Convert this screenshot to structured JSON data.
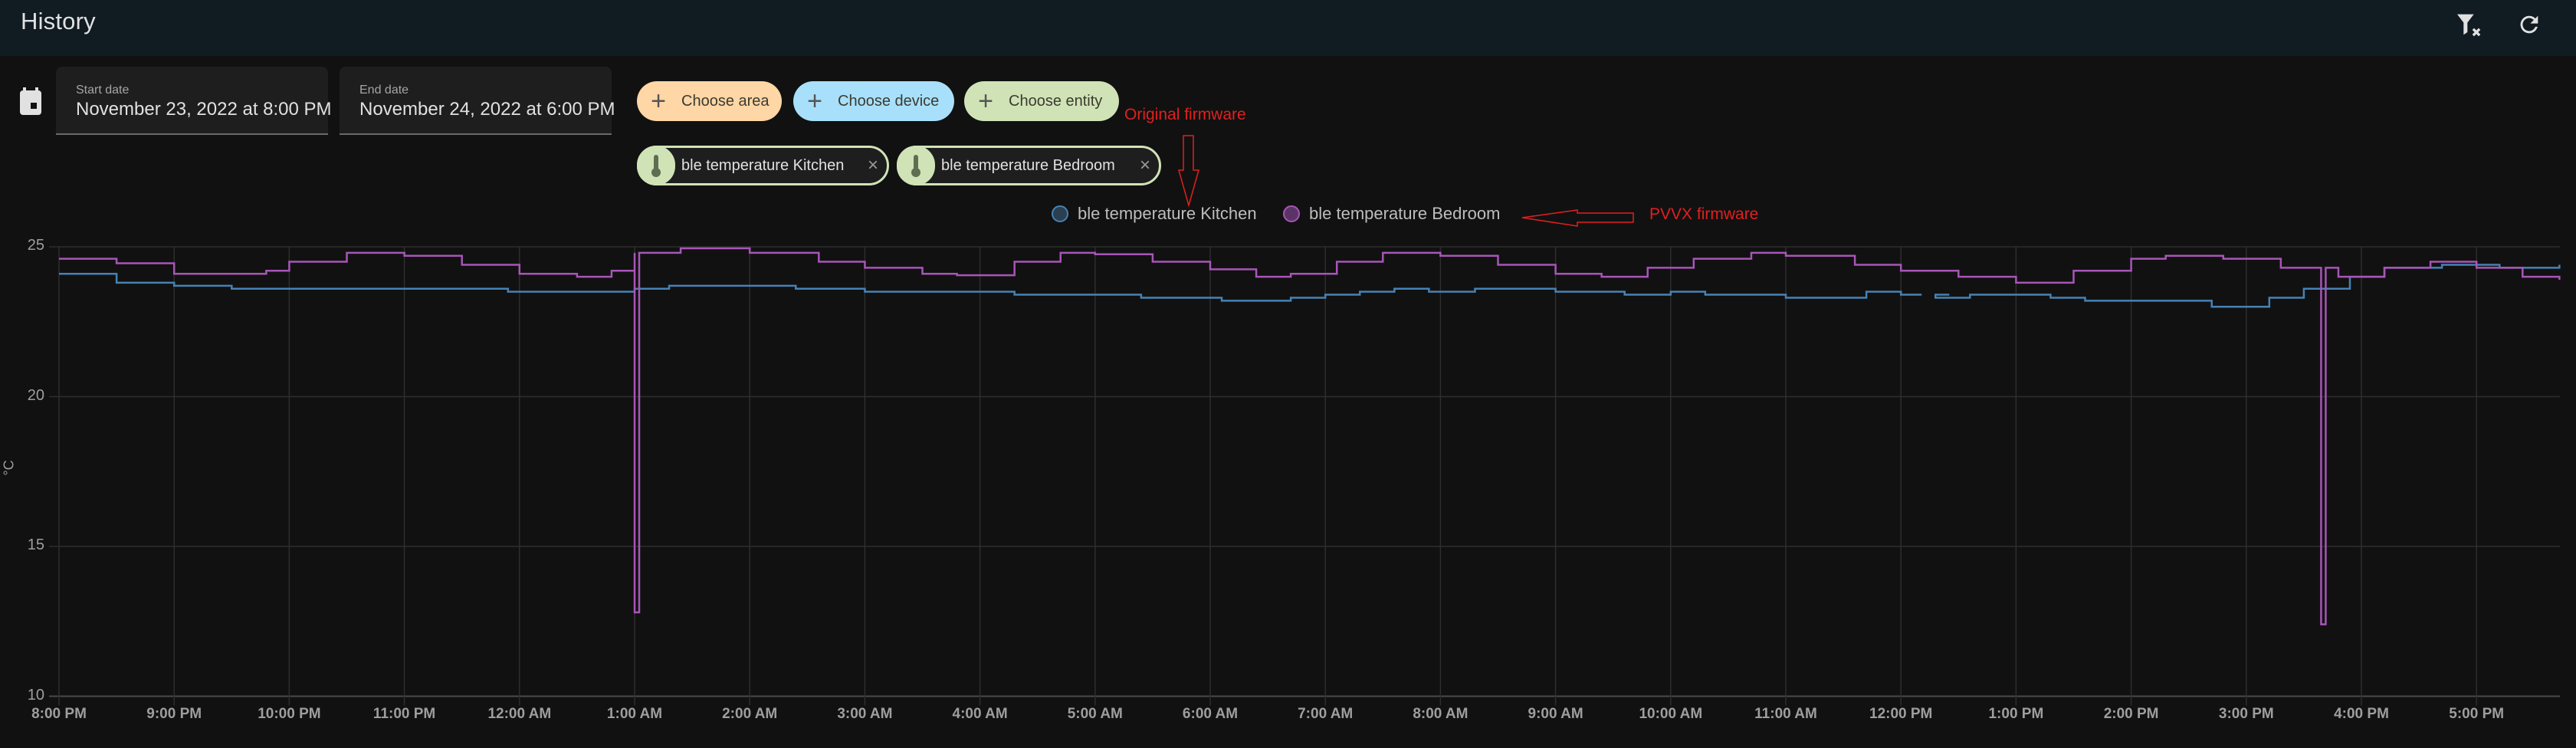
{
  "header": {
    "title": "History",
    "icons": [
      "filter-remove-icon",
      "refresh-icon"
    ]
  },
  "date_range": {
    "start": {
      "label": "Start date",
      "value": "November 23, 2022 at 8:00 PM"
    },
    "end": {
      "label": "End date",
      "value": "November 24, 2022 at 6:00 PM"
    }
  },
  "targets": {
    "add_buttons": [
      {
        "label": "Choose area",
        "color": "#ffd6a5",
        "icon": "plus-icon"
      },
      {
        "label": "Choose device",
        "color": "#a8e0fb",
        "icon": "plus-icon"
      },
      {
        "label": "Choose entity",
        "color": "#d0e3b6",
        "icon": "plus-icon"
      }
    ],
    "selected": [
      {
        "label": "ble temperature Kitchen",
        "icon": "thermometer-icon"
      },
      {
        "label": "ble temperature Bedroom",
        "icon": "thermometer-icon"
      }
    ]
  },
  "legend": [
    {
      "label": "ble temperature Kitchen",
      "color": "#4682b4",
      "fill": "#2a3f52"
    },
    {
      "label": "ble temperature Bedroom",
      "color": "#a855b8",
      "fill": "#5a3466"
    }
  ],
  "annotations": {
    "original": "Original firmware",
    "pvvx": "PVVX firmware"
  },
  "chart_data": {
    "type": "line",
    "title": "",
    "xlabel": "",
    "ylabel": "°C",
    "ylim": [
      10,
      25
    ],
    "yticks": [
      10,
      15,
      20,
      25
    ],
    "grid": true,
    "legend_position": "top",
    "x_ticks": [
      "8:00 PM",
      "9:00 PM",
      "10:00 PM",
      "11:00 PM",
      "12:00 AM",
      "1:00 AM",
      "2:00 AM",
      "3:00 AM",
      "4:00 AM",
      "5:00 AM",
      "6:00 AM",
      "7:00 AM",
      "8:00 AM",
      "9:00 AM",
      "10:00 AM",
      "11:00 AM",
      "12:00 PM",
      "1:00 PM",
      "2:00 PM",
      "3:00 PM",
      "4:00 PM",
      "5:00 PM"
    ],
    "x_range_hours": [
      0,
      21.72
    ],
    "series": [
      {
        "name": "ble temperature Kitchen",
        "color": "#4682b4",
        "step": true,
        "points": [
          [
            0,
            24.1
          ],
          [
            0.5,
            23.8
          ],
          [
            1,
            23.7
          ],
          [
            1.5,
            23.6
          ],
          [
            2.5,
            23.6
          ],
          [
            3,
            23.6
          ],
          [
            3.9,
            23.5
          ],
          [
            4.5,
            23.5
          ],
          [
            5,
            23.6
          ],
          [
            5.3,
            23.7
          ],
          [
            6,
            23.7
          ],
          [
            6.4,
            23.6
          ],
          [
            7,
            23.5
          ],
          [
            8,
            23.5
          ],
          [
            8.3,
            23.4
          ],
          [
            9,
            23.4
          ],
          [
            9.4,
            23.3
          ],
          [
            10,
            23.3
          ],
          [
            10.1,
            23.2
          ],
          [
            10.7,
            23.3
          ],
          [
            11,
            23.4
          ],
          [
            11.3,
            23.5
          ],
          [
            11.6,
            23.6
          ],
          [
            11.9,
            23.5
          ],
          [
            12.3,
            23.6
          ],
          [
            13,
            23.5
          ],
          [
            13.6,
            23.4
          ],
          [
            14,
            23.5
          ],
          [
            14.3,
            23.4
          ],
          [
            14.6,
            23.4
          ],
          [
            15,
            23.3
          ],
          [
            15.4,
            23.3
          ],
          [
            15.7,
            23.5
          ],
          [
            16,
            23.4
          ],
          [
            16.3,
            23.3
          ],
          [
            16.6,
            23.4
          ],
          [
            16.9,
            23.4
          ],
          [
            17.3,
            23.3
          ],
          [
            17.6,
            23.2
          ],
          [
            18.7,
            23.0
          ],
          [
            19.2,
            23.3
          ],
          [
            19.5,
            23.6
          ],
          [
            19.9,
            24.0
          ],
          [
            20.2,
            24.3
          ],
          [
            20.7,
            24.4
          ],
          [
            21.2,
            24.3
          ],
          [
            21.72,
            24.4
          ]
        ],
        "gaps": [
          [
            16.18,
            16.42
          ]
        ]
      },
      {
        "name": "ble temperature Bedroom",
        "color": "#a855b8",
        "step": true,
        "points": [
          [
            0,
            24.6
          ],
          [
            0.5,
            24.45
          ],
          [
            1,
            24.1
          ],
          [
            1.4,
            24.1
          ],
          [
            1.8,
            24.2
          ],
          [
            2,
            24.5
          ],
          [
            2.5,
            24.8
          ],
          [
            3,
            24.7
          ],
          [
            3.5,
            24.4
          ],
          [
            4,
            24.1
          ],
          [
            4.5,
            24.0
          ],
          [
            4.8,
            24.2
          ],
          [
            5,
            24.8
          ],
          [
            5.4,
            24.95
          ],
          [
            6,
            24.8
          ],
          [
            6.6,
            24.5
          ],
          [
            7,
            24.3
          ],
          [
            7.5,
            24.1
          ],
          [
            7.8,
            24.05
          ],
          [
            8.3,
            24.5
          ],
          [
            8.7,
            24.8
          ],
          [
            9,
            24.75
          ],
          [
            9.5,
            24.5
          ],
          [
            10,
            24.25
          ],
          [
            10.4,
            24.0
          ],
          [
            10.7,
            24.1
          ],
          [
            11.1,
            24.5
          ],
          [
            11.5,
            24.8
          ],
          [
            12,
            24.7
          ],
          [
            12.5,
            24.4
          ],
          [
            13,
            24.1
          ],
          [
            13.4,
            24.0
          ],
          [
            13.8,
            24.3
          ],
          [
            14.2,
            24.6
          ],
          [
            14.7,
            24.8
          ],
          [
            15,
            24.7
          ],
          [
            15.6,
            24.4
          ],
          [
            16,
            24.2
          ],
          [
            16.5,
            24.0
          ],
          [
            17,
            23.8
          ],
          [
            17.5,
            24.2
          ],
          [
            18.0,
            24.6
          ],
          [
            18.3,
            24.7
          ],
          [
            18.8,
            24.6
          ],
          [
            19.3,
            24.3
          ],
          [
            19.8,
            24.0
          ],
          [
            20.2,
            24.3
          ],
          [
            20.6,
            24.5
          ],
          [
            21.0,
            24.3
          ],
          [
            21.4,
            24.0
          ],
          [
            21.72,
            23.9
          ]
        ],
        "spikes": [
          {
            "x": 5.0,
            "min": 12.8
          },
          {
            "x": 19.65,
            "min": 12.4
          }
        ]
      }
    ]
  }
}
